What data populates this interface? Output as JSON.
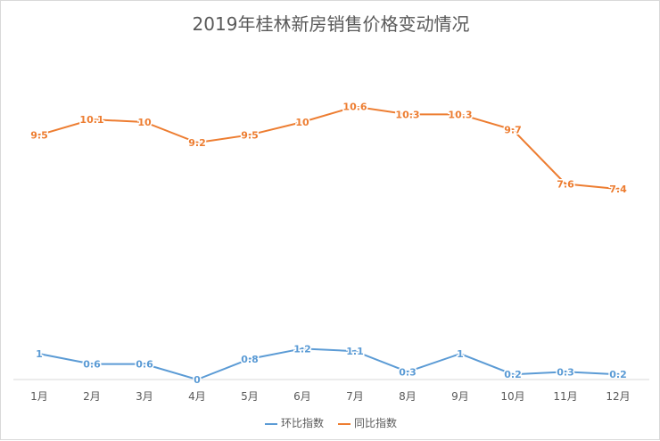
{
  "chart_data": {
    "type": "line",
    "title": "2019年桂林新房销售价格变动情况",
    "categories": [
      "1月",
      "2月",
      "3月",
      "4月",
      "5月",
      "6月",
      "7月",
      "8月",
      "9月",
      "10月",
      "11月",
      "12月"
    ],
    "series": [
      {
        "name": "环比指数",
        "color": "#5b9bd5",
        "values": [
          1,
          0.6,
          0.6,
          0,
          0.8,
          1.2,
          1.1,
          0.3,
          1,
          0.2,
          0.3,
          0.2
        ]
      },
      {
        "name": "同比指数",
        "color": "#ed7d31",
        "values": [
          9.5,
          10.1,
          10,
          9.2,
          9.5,
          10,
          10.6,
          10.3,
          10.3,
          9.7,
          7.6,
          7.4
        ]
      }
    ],
    "data_labels": [
      [
        "1",
        "0.6",
        "0.6",
        "0",
        "0.8",
        "1.2",
        "1.1",
        "0.3",
        "1",
        "0.2",
        "0.3",
        "0.2"
      ],
      [
        "9.5",
        "10.1",
        "10",
        "9.2",
        "9.5",
        "10",
        "10.6",
        "10.3",
        "10.3",
        "9.7",
        "7.6",
        "7.4"
      ]
    ],
    "legend_position": "bottom",
    "grid": false
  }
}
